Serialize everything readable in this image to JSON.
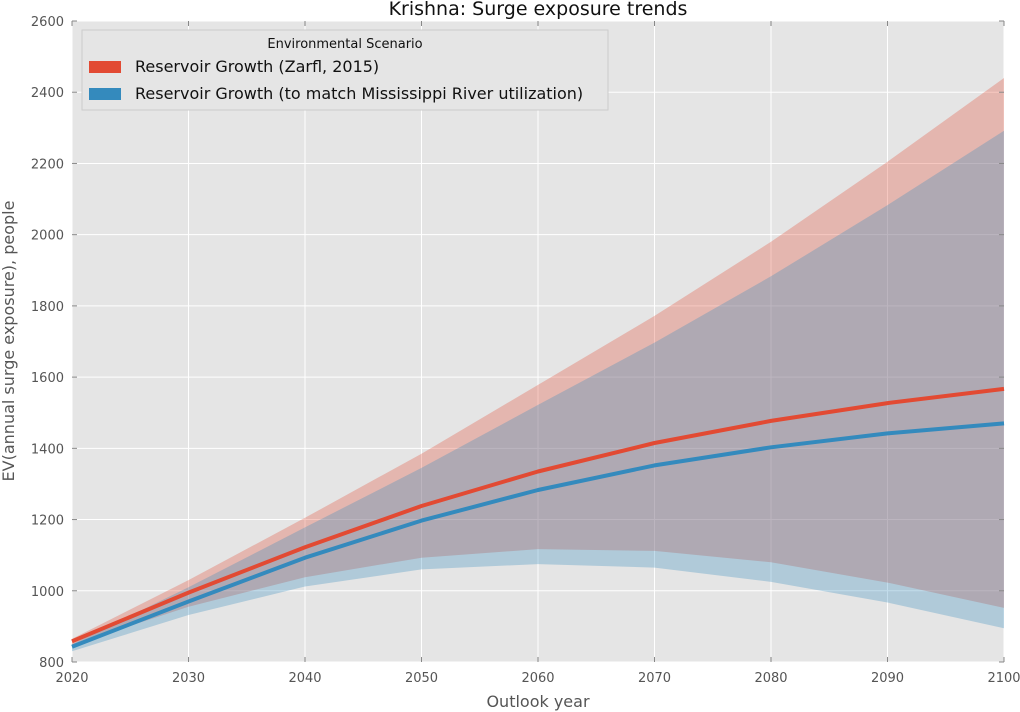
{
  "chart_data": {
    "type": "line",
    "title": "Krishna: Surge exposure trends",
    "xlabel": "Outlook year",
    "ylabel": "EV(annual surge exposure), people",
    "xlim": [
      2020,
      2100
    ],
    "ylim": [
      800,
      2600
    ],
    "x_ticks": [
      "2020",
      "2030",
      "2040",
      "2050",
      "2060",
      "2070",
      "2080",
      "2090",
      "2100"
    ],
    "y_ticks": [
      "800",
      "1000",
      "1200",
      "1400",
      "1600",
      "1800",
      "2000",
      "2200",
      "2400",
      "2600"
    ],
    "grid": true,
    "background_color": "#e5e5e5",
    "legend": {
      "title": "Environmental Scenario",
      "placement": "top-left"
    },
    "x": [
      2020,
      2030,
      2040,
      2050,
      2060,
      2070,
      2080,
      2090,
      2100
    ],
    "series": [
      {
        "name": "Reservoir Growth (Zarfl, 2015)",
        "color": "#e24a33",
        "values": [
          858,
          995,
          1122,
          1238,
          1335,
          1415,
          1477,
          1527,
          1567
        ],
        "band_upper": [
          865,
          1030,
          1205,
          1385,
          1578,
          1772,
          1980,
          2205,
          2440
        ],
        "band_lower": [
          848,
          955,
          1038,
          1093,
          1117,
          1112,
          1080,
          1023,
          952
        ]
      },
      {
        "name": "Reservoir Growth (to match Mississippi River utilization)",
        "color": "#348abd",
        "values": [
          843,
          970,
          1093,
          1197,
          1283,
          1352,
          1403,
          1442,
          1470
        ],
        "band_upper": [
          850,
          1010,
          1178,
          1345,
          1522,
          1697,
          1883,
          2083,
          2292
        ],
        "band_lower": [
          830,
          932,
          1012,
          1060,
          1075,
          1065,
          1025,
          967,
          895
        ]
      }
    ]
  }
}
